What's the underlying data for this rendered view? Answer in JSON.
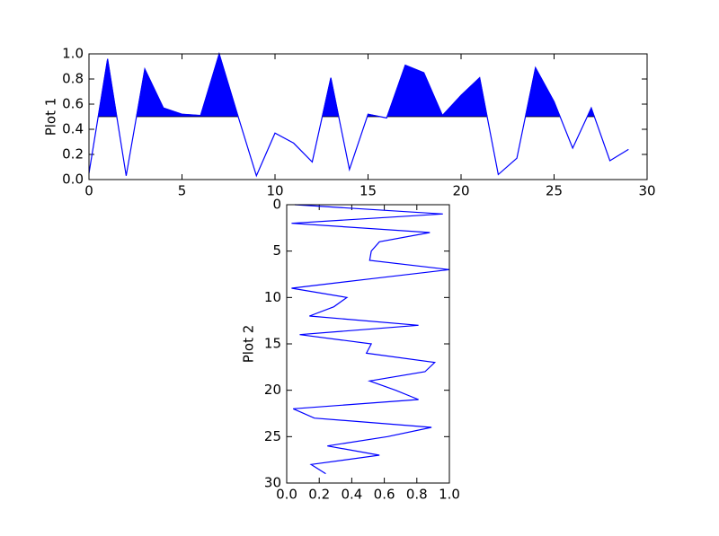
{
  "chart_data": [
    {
      "type": "line",
      "ylabel": "Plot 1",
      "color": "#0000ff",
      "fill_color": "#0000ff",
      "fill_threshold": 0.5,
      "x": [
        0,
        1,
        2,
        3,
        4,
        5,
        6,
        7,
        8,
        9,
        10,
        11,
        12,
        13,
        14,
        15,
        16,
        17,
        18,
        19,
        20,
        21,
        22,
        23,
        24,
        25,
        26,
        27,
        28,
        29
      ],
      "values": [
        0.05,
        0.96,
        0.03,
        0.88,
        0.57,
        0.52,
        0.51,
        1.0,
        0.51,
        0.03,
        0.37,
        0.29,
        0.14,
        0.81,
        0.08,
        0.52,
        0.49,
        0.91,
        0.85,
        0.51,
        0.67,
        0.81,
        0.04,
        0.17,
        0.89,
        0.62,
        0.25,
        0.57,
        0.15,
        0.24
      ],
      "xlim": [
        0,
        30
      ],
      "xticks": [
        0,
        5,
        10,
        15,
        20,
        25,
        30
      ],
      "ylim": [
        0,
        1
      ],
      "yticks": [
        {
          "value": 0,
          "label": "0.0"
        },
        0.2,
        0.4,
        0.6,
        0.8,
        {
          "value": 1,
          "label": "1.0"
        }
      ]
    },
    {
      "type": "line",
      "orientation": "vertical",
      "ylabel": "Plot 2",
      "color": "#0000ff",
      "values": [
        0.05,
        0.96,
        0.03,
        0.88,
        0.57,
        0.52,
        0.51,
        1.0,
        0.51,
        0.03,
        0.37,
        0.29,
        0.14,
        0.81,
        0.08,
        0.52,
        0.49,
        0.91,
        0.85,
        0.51,
        0.67,
        0.81,
        0.04,
        0.17,
        0.89,
        0.62,
        0.25,
        0.57,
        0.15,
        0.24
      ],
      "xlim": [
        0,
        1
      ],
      "xticks": [
        {
          "value": 0,
          "label": "0.0"
        },
        0.2,
        0.4,
        0.6,
        0.8,
        {
          "value": 1,
          "label": "1.0"
        }
      ],
      "ylim": [
        30,
        0
      ],
      "yticks": [
        0,
        5,
        10,
        15,
        20,
        25,
        30
      ]
    }
  ]
}
